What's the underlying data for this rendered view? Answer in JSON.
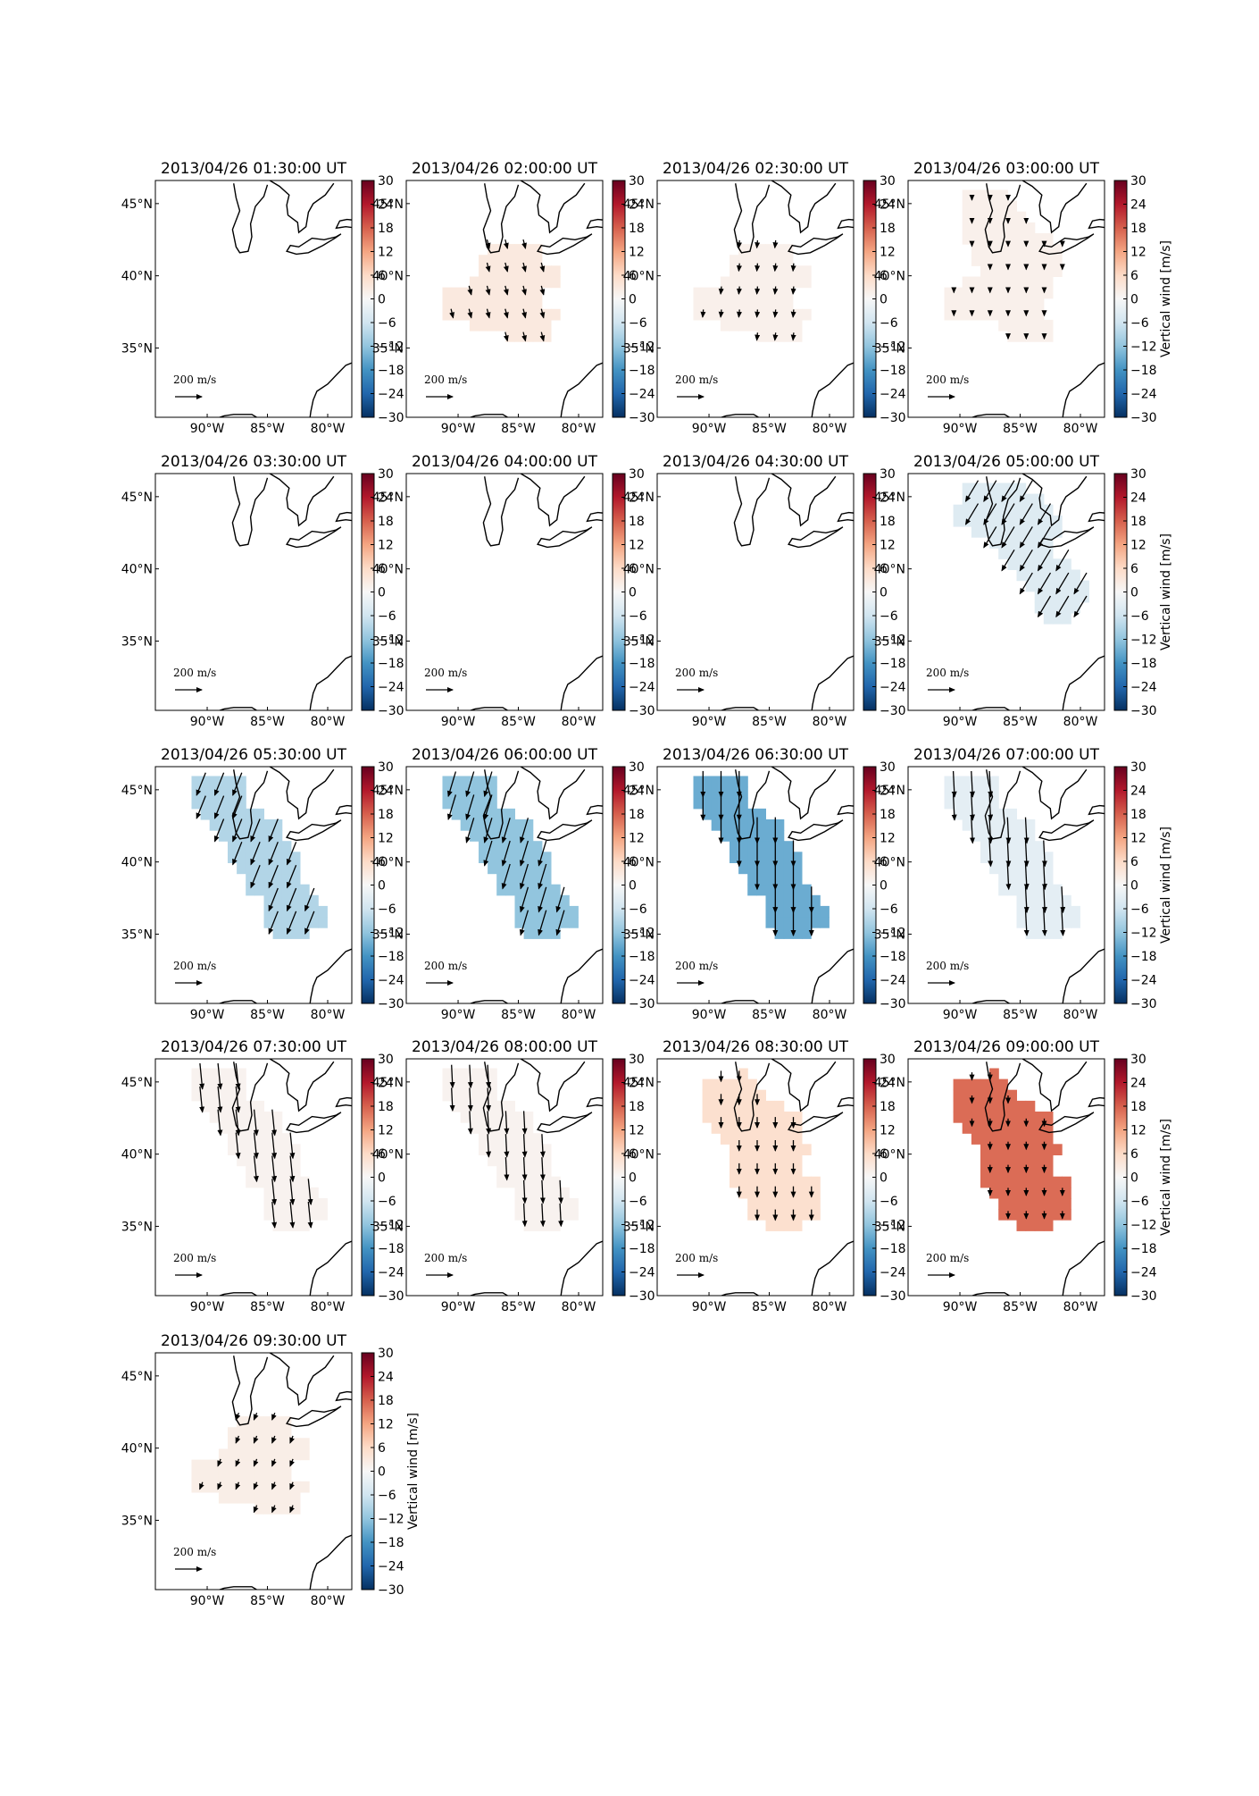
{
  "colorbar": {
    "label": "Vertical wind [m/s]",
    "ticks": [
      "30",
      "24",
      "18",
      "12",
      "6",
      "0",
      "−6",
      "−12",
      "−18",
      "−24",
      "−30"
    ],
    "range": [
      -30,
      30
    ],
    "colormap": "RdBu_r"
  },
  "map": {
    "lat_ticks": [
      "45°N",
      "40°N",
      "35°N"
    ],
    "lon_ticks": [
      "90°W",
      "85°W",
      "80°W"
    ],
    "coastline_color": "#000000",
    "arrow_scale_label": "200 m/s"
  },
  "panels": [
    {
      "title": "2013/04/26 01:30:00 UT",
      "region": "none",
      "vertical_wind": null,
      "arrow_dir": null,
      "arrow_len": 0,
      "show_cb_label": false
    },
    {
      "title": "2013/04/26 02:00:00 UT",
      "region": "A",
      "vertical_wind": 3,
      "arrow_dir": [
        0.25,
        1
      ],
      "arrow_len": 0.6,
      "show_cb_label": false
    },
    {
      "title": "2013/04/26 02:30:00 UT",
      "region": "A",
      "vertical_wind": 1.5,
      "arrow_dir": [
        -0.1,
        1
      ],
      "arrow_len": 0.5,
      "show_cb_label": false
    },
    {
      "title": "2013/04/26 03:00:00 UT",
      "region": "B",
      "vertical_wind": 1.5,
      "arrow_dir": [
        0,
        1
      ],
      "arrow_len": 0.3,
      "show_cb_label": true
    },
    {
      "title": "2013/04/26 03:30:00 UT",
      "region": "none",
      "vertical_wind": null,
      "arrow_dir": null,
      "arrow_len": 0,
      "show_cb_label": false
    },
    {
      "title": "2013/04/26 04:00:00 UT",
      "region": "none",
      "vertical_wind": null,
      "arrow_dir": null,
      "arrow_len": 0,
      "show_cb_label": false
    },
    {
      "title": "2013/04/26 04:30:00 UT",
      "region": "none",
      "vertical_wind": null,
      "arrow_dir": null,
      "arrow_len": 0,
      "show_cb_label": false
    },
    {
      "title": "2013/04/26 05:00:00 UT",
      "region": "C",
      "vertical_wind": -4,
      "arrow_dir": [
        -0.6,
        1
      ],
      "arrow_len": 1.6,
      "show_cb_label": true
    },
    {
      "title": "2013/04/26 05:30:00 UT",
      "region": "D",
      "vertical_wind": -9,
      "arrow_dir": [
        -0.4,
        1
      ],
      "arrow_len": 1.6,
      "show_cb_label": false
    },
    {
      "title": "2013/04/26 06:00:00 UT",
      "region": "D",
      "vertical_wind": -12,
      "arrow_dir": [
        -0.3,
        1
      ],
      "arrow_len": 1.7,
      "show_cb_label": false
    },
    {
      "title": "2013/04/26 06:30:00 UT",
      "region": "D",
      "vertical_wind": -15,
      "arrow_dir": [
        0,
        1
      ],
      "arrow_len": 1.7,
      "show_cb_label": false
    },
    {
      "title": "2013/04/26 07:00:00 UT",
      "region": "D",
      "vertical_wind": -3,
      "arrow_dir": [
        0.05,
        1
      ],
      "arrow_len": 1.7,
      "show_cb_label": true
    },
    {
      "title": "2013/04/26 07:30:00 UT",
      "region": "D",
      "vertical_wind": 1,
      "arrow_dir": [
        0.1,
        1
      ],
      "arrow_len": 1.7,
      "show_cb_label": false
    },
    {
      "title": "2013/04/26 08:00:00 UT",
      "region": "D",
      "vertical_wind": 1,
      "arrow_dir": [
        0.05,
        1
      ],
      "arrow_len": 1.5,
      "show_cb_label": false
    },
    {
      "title": "2013/04/26 08:30:00 UT",
      "region": "E",
      "vertical_wind": 5,
      "arrow_dir": [
        0,
        1
      ],
      "arrow_len": 0.7,
      "show_cb_label": false
    },
    {
      "title": "2013/04/26 09:00:00 UT",
      "region": "E",
      "vertical_wind": 17,
      "arrow_dir": [
        0,
        1
      ],
      "arrow_len": 0.5,
      "show_cb_label": true
    },
    {
      "title": "2013/04/26 09:30:00 UT",
      "region": "A",
      "vertical_wind": 2,
      "arrow_dir": [
        -0.4,
        1
      ],
      "arrow_len": 0.5,
      "show_cb_label": true
    }
  ]
}
